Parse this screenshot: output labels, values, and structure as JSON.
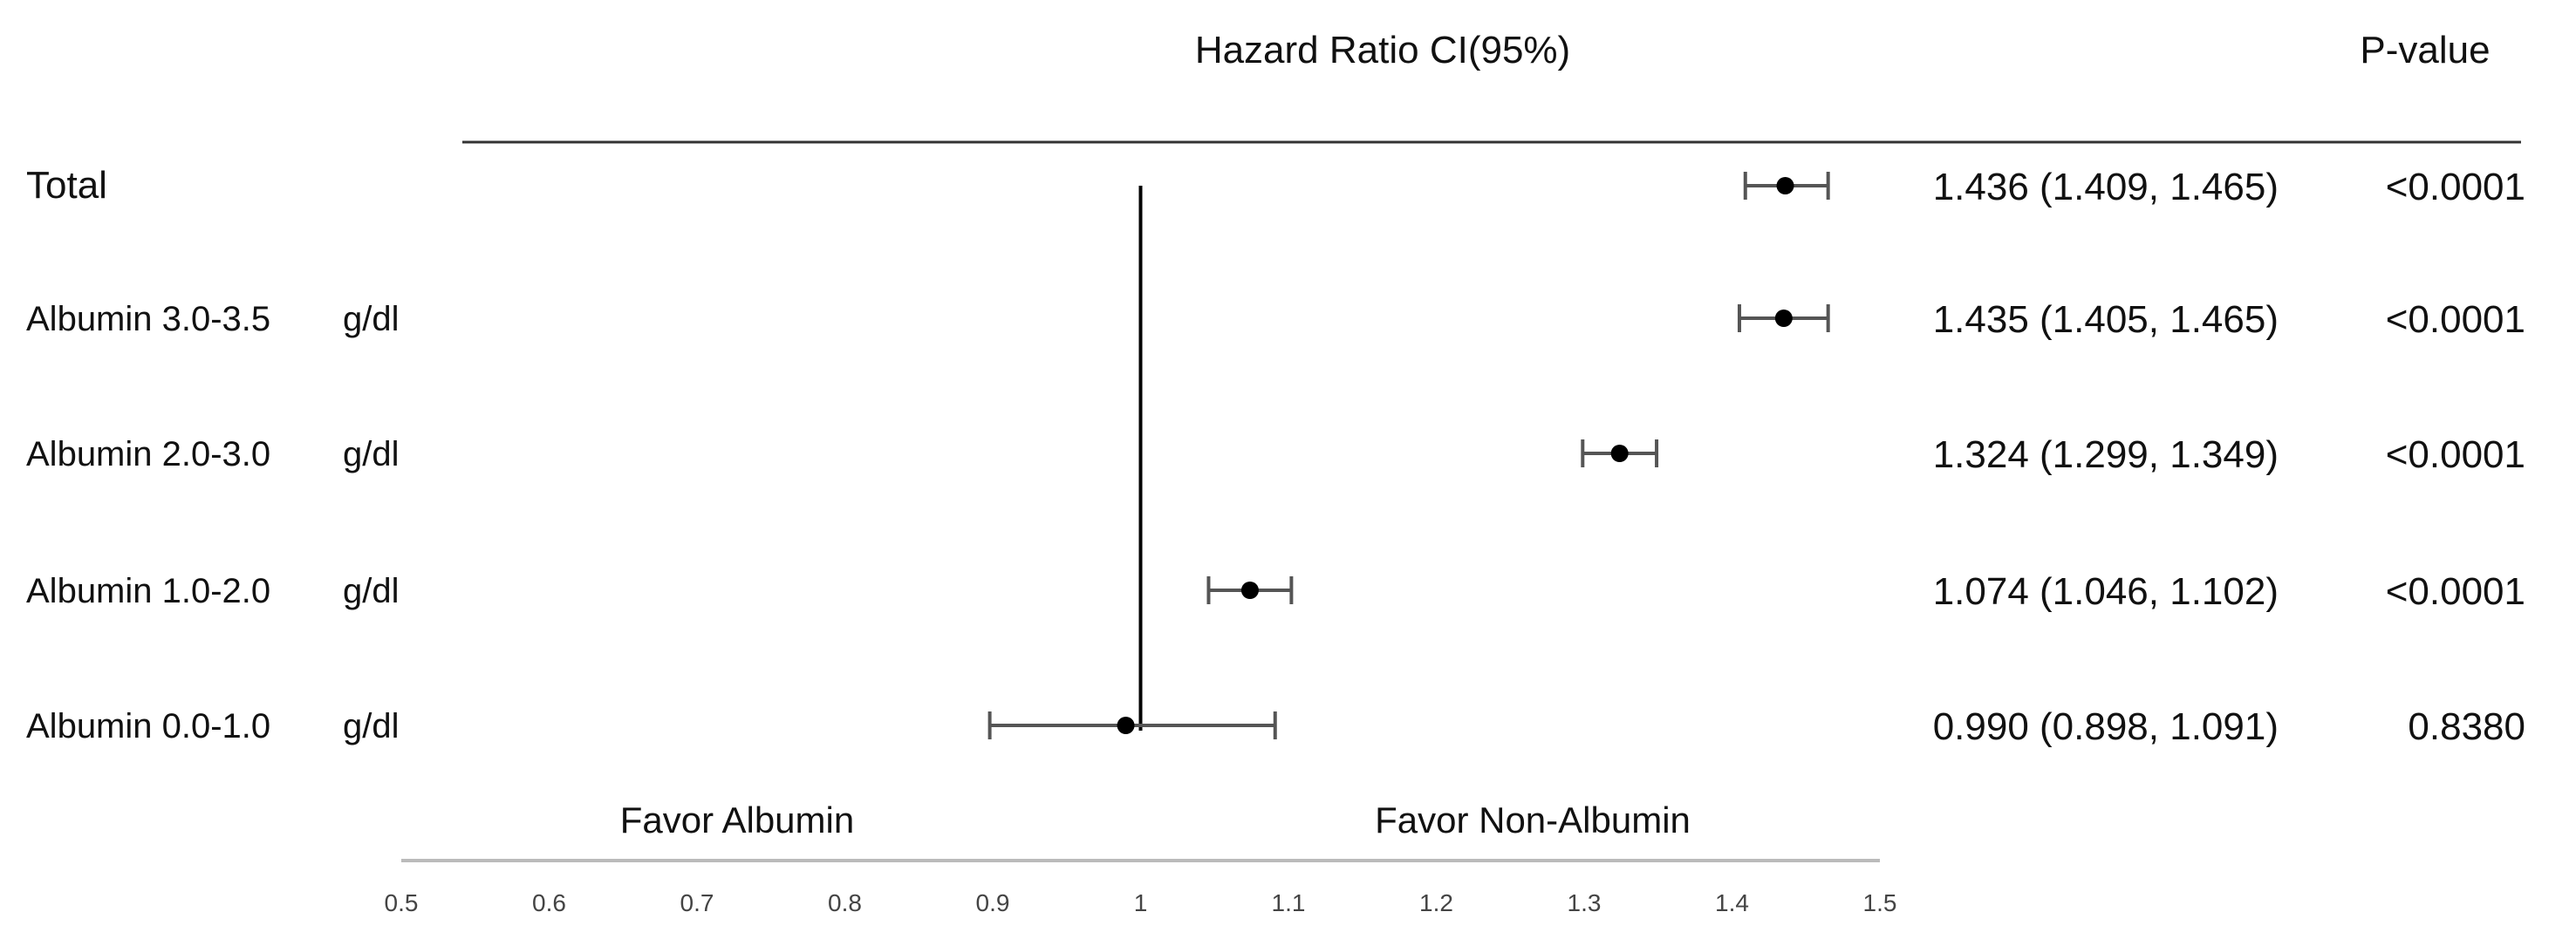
{
  "chart_data": {
    "type": "forest",
    "column_headers": {
      "estimate": "Hazard Ratio CI(95%)",
      "pvalue": "P-value"
    },
    "reference_value": 1,
    "xlim": [
      0.5,
      1.5
    ],
    "x_ticks": [
      "0.5",
      "0.6",
      "0.7",
      "0.8",
      "0.9",
      "1",
      "1.1",
      "1.2",
      "1.3",
      "1.4",
      "1.5"
    ],
    "favor_labels": {
      "left": "Favor Albumin",
      "right": "Favor Non-Albumin"
    },
    "rows": [
      {
        "label": "Total",
        "unit": "",
        "hr": 1.436,
        "lower": 1.409,
        "upper": 1.465,
        "ci_text": "1.436 (1.409, 1.465)",
        "p_value": "<0.0001"
      },
      {
        "label": "Albumin 3.0-3.5",
        "unit": "g/dl",
        "hr": 1.435,
        "lower": 1.405,
        "upper": 1.465,
        "ci_text": "1.435 (1.405, 1.465)",
        "p_value": "<0.0001"
      },
      {
        "label": "Albumin 2.0-3.0",
        "unit": "g/dl",
        "hr": 1.324,
        "lower": 1.299,
        "upper": 1.349,
        "ci_text": "1.324 (1.299, 1.349)",
        "p_value": "<0.0001"
      },
      {
        "label": "Albumin 1.0-2.0",
        "unit": "g/dl",
        "hr": 1.074,
        "lower": 1.046,
        "upper": 1.102,
        "ci_text": "1.074 (1.046, 1.102)",
        "p_value": "<0.0001"
      },
      {
        "label": "Albumin 0.0-1.0",
        "unit": "g/dl",
        "hr": 0.99,
        "lower": 0.898,
        "upper": 1.091,
        "ci_text": "0.990 (0.898, 1.091)",
        "p_value": "0.8380"
      }
    ],
    "colors": {
      "marker": "#000000",
      "ci_line": "#555555",
      "reference_line": "#000000",
      "header_rule": "#333333",
      "axis": "#bbbbbb",
      "tick_text": "#444444"
    }
  }
}
